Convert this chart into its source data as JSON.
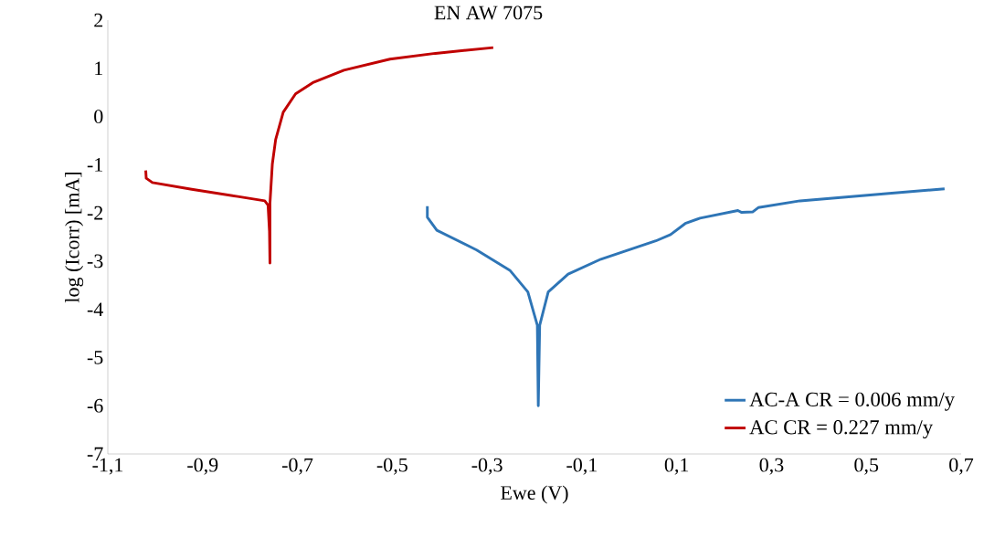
{
  "chart_data": {
    "type": "line",
    "title": "EN AW 7075",
    "xlabel": "Ewe (V)",
    "ylabel": "log (Icorr) [mA]",
    "xlim": [
      -1.1,
      0.7
    ],
    "xticks": [
      {
        "value": -1.1,
        "label": "-1,1"
      },
      {
        "value": -0.9,
        "label": "-0,9"
      },
      {
        "value": -0.7,
        "label": "-0,7"
      },
      {
        "value": -0.5,
        "label": "-0,5"
      },
      {
        "value": -0.3,
        "label": "-0,3"
      },
      {
        "value": -0.1,
        "label": "-0,1"
      },
      {
        "value": 0.1,
        "label": "0,1"
      },
      {
        "value": 0.3,
        "label": "0,3"
      },
      {
        "value": 0.5,
        "label": "0,5"
      },
      {
        "value": 0.7,
        "label": "0,7"
      }
    ],
    "ylim": [
      -7,
      2
    ],
    "yticks": [
      -7,
      -6,
      -5,
      -4,
      -3,
      -2,
      -1,
      0,
      1,
      2
    ],
    "grid": false,
    "legend": "bottom right",
    "marker": "none",
    "line_style": "solid",
    "series": [
      {
        "name": "AC-A CR = 0.006 mm/y",
        "color": "#2e75b6",
        "x": [
          -0.426,
          -0.426,
          -0.406,
          -0.322,
          -0.252,
          -0.214,
          -0.194,
          -0.192,
          -0.189,
          -0.171,
          -0.129,
          -0.06,
          0.056,
          0.087,
          0.118,
          0.149,
          0.229,
          0.237,
          0.26,
          0.272,
          0.36,
          0.457,
          0.542,
          0.665
        ],
        "values": [
          -1.86,
          -2.09,
          -2.36,
          -2.77,
          -3.19,
          -3.64,
          -4.33,
          -6.0,
          -4.33,
          -3.64,
          -3.27,
          -2.96,
          -2.58,
          -2.45,
          -2.22,
          -2.11,
          -1.95,
          -1.99,
          -1.98,
          -1.89,
          -1.75,
          -1.67,
          -1.6,
          -1.5
        ]
      },
      {
        "name": "AC CR =  0.227 mm/y",
        "color": "#c00000",
        "x": [
          -1.02,
          -1.019,
          -1.006,
          -0.923,
          -0.826,
          -0.769,
          -0.762,
          -0.759,
          -0.758,
          -0.758,
          -0.753,
          -0.746,
          -0.73,
          -0.704,
          -0.666,
          -0.602,
          -0.505,
          -0.409,
          -0.287
        ],
        "values": [
          -1.12,
          -1.28,
          -1.37,
          -1.51,
          -1.66,
          -1.75,
          -1.84,
          -2.38,
          -3.04,
          -1.8,
          -0.99,
          -0.48,
          0.09,
          0.47,
          0.71,
          0.96,
          1.19,
          1.31,
          1.43
        ]
      }
    ]
  }
}
